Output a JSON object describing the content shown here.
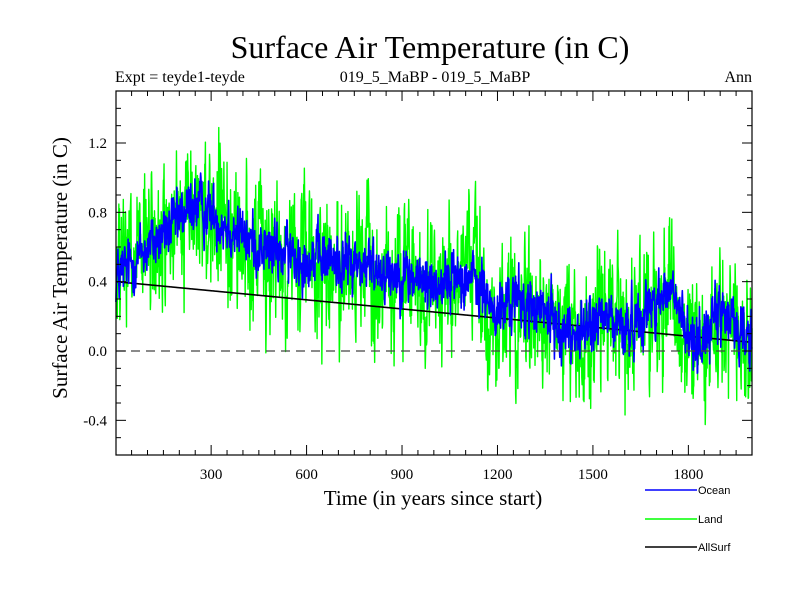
{
  "chart_data": {
    "type": "line",
    "title": "Surface Air Temperature (in C)",
    "subtitle_left": "Expt = teyde1-teyde",
    "subtitle_center": "019_5_MaBP - 019_5_MaBP",
    "subtitle_right": "Ann",
    "xlabel": "Time (in years since start)",
    "ylabel": "Surface Air Temperature (in C)",
    "xlim": [
      1,
      2000
    ],
    "ylim": [
      -0.6,
      1.5
    ],
    "xticks": [
      300,
      600,
      900,
      1200,
      1500,
      1800
    ],
    "xtick_labels": [
      "300",
      "600",
      "900",
      "1200",
      "1500",
      "1800"
    ],
    "yticks": [
      -0.4,
      0.0,
      0.4,
      0.8,
      1.2
    ],
    "ytick_labels": [
      "-0.4",
      "0.0",
      "0.4",
      "0.8",
      "1.2"
    ],
    "zero_line": true,
    "legend_position": "bottom-right",
    "colors": {
      "ocean": "#0000ff",
      "land": "#00ff00",
      "allsurf": "#000000"
    },
    "series": [
      {
        "name": "Ocean",
        "color": "#0000ff",
        "description": "annual-mean ocean surface air temperature anomaly, ~2000 annual values",
        "x_anchor": [
          1,
          100,
          200,
          240,
          300,
          360,
          450,
          550,
          700,
          850,
          1000,
          1100,
          1150,
          1200,
          1250,
          1300,
          1350,
          1400,
          1450,
          1500,
          1550,
          1600,
          1650,
          1700,
          1750,
          1800,
          1850,
          1900,
          1950,
          2000
        ],
        "y_anchor": [
          0.42,
          0.6,
          0.75,
          0.85,
          0.8,
          0.72,
          0.6,
          0.55,
          0.52,
          0.47,
          0.38,
          0.45,
          0.35,
          0.2,
          0.3,
          0.25,
          0.22,
          0.12,
          0.1,
          0.15,
          0.2,
          0.12,
          0.2,
          0.3,
          0.35,
          0.05,
          0.08,
          0.22,
          0.15,
          0.05
        ],
        "noise_amplitude": 0.13
      },
      {
        "name": "Land",
        "color": "#00ff00",
        "description": "annual-mean land surface air temperature anomaly, ~2000 annual values",
        "x_anchor": [
          1,
          100,
          200,
          240,
          300,
          360,
          450,
          550,
          700,
          850,
          1000,
          1100,
          1150,
          1200,
          1250,
          1300,
          1350,
          1400,
          1450,
          1500,
          1550,
          1600,
          1650,
          1700,
          1750,
          1800,
          1850,
          1900,
          1950,
          2000
        ],
        "y_anchor": [
          0.4,
          0.58,
          0.72,
          0.82,
          0.78,
          0.68,
          0.58,
          0.52,
          0.5,
          0.45,
          0.36,
          0.42,
          0.33,
          0.18,
          0.28,
          0.24,
          0.2,
          0.1,
          0.08,
          0.13,
          0.18,
          0.1,
          0.18,
          0.28,
          0.33,
          0.03,
          0.06,
          0.2,
          0.13,
          0.03
        ],
        "noise_amplitude": 0.32
      },
      {
        "name": "AllSurf",
        "color": "#000000",
        "description": "all-surface mean, drawn underneath the ocean series",
        "x_anchor": [
          1,
          2000
        ],
        "y_anchor": [
          0.4,
          0.05
        ],
        "noise_amplitude": 0.0
      }
    ],
    "legend": [
      {
        "label": "Ocean",
        "color": "#0000ff"
      },
      {
        "label": "Land",
        "color": "#00ff00"
      },
      {
        "label": "AllSurf",
        "color": "#000000"
      }
    ]
  }
}
